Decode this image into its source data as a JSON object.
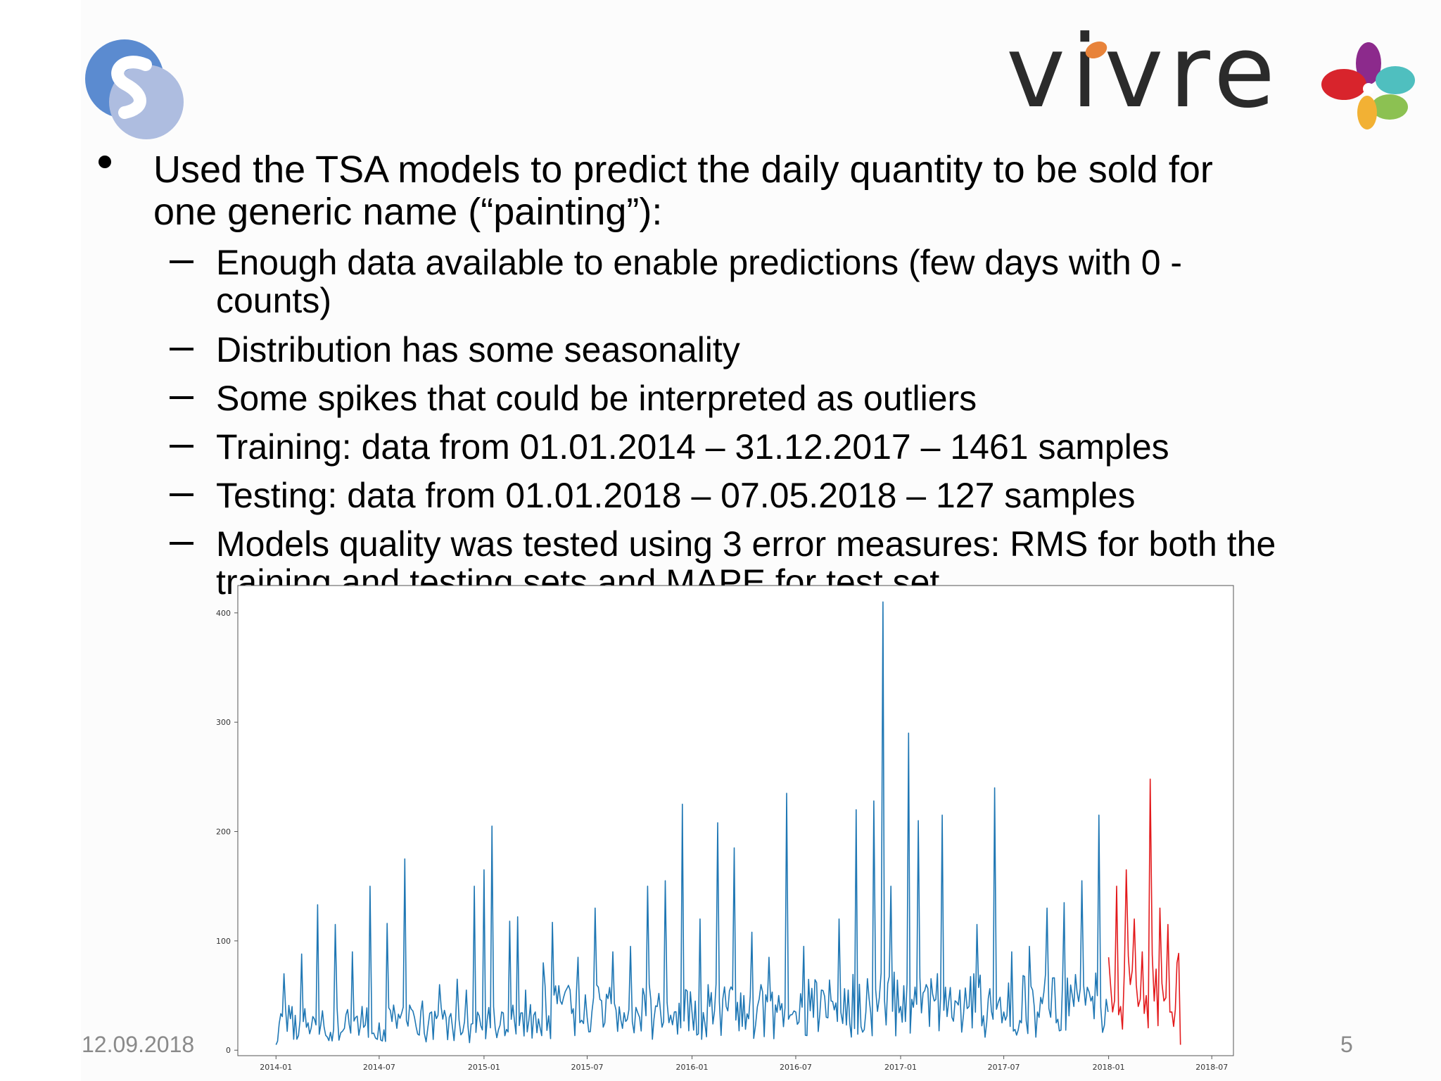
{
  "slide": {
    "bullet": {
      "line1": "Used the TSA models to predict the daily quantity to be sold for",
      "line2": "one generic name (“painting”):"
    },
    "sub_items": [
      {
        "line1": "Enough data available to enable predictions (few days with 0 -",
        "line2": "counts)"
      },
      {
        "line1": "Distribution has some seasonality"
      },
      {
        "line1": "Some spikes that could be interpreted as outliers"
      },
      {
        "line1": "Training: data from 01.01.2014 – 31.12.2017 – 1461 samples"
      },
      {
        "line1": "Testing: data from 01.01.2018 – 07.05.2018 – 127 samples"
      },
      {
        "line1": "Models quality was tested using 3 error measures: RMS for both the",
        "line2": "training and testing sets and MAPE for test set"
      }
    ],
    "footer": {
      "date": "12.09.2018",
      "page": "5"
    },
    "logo_text": "vivre"
  },
  "colors": {
    "train_series": "#1f77b4",
    "test_series": "#e31a1c",
    "left_logo_dark": "#5b8bd0",
    "left_logo_light": "#aebde0",
    "vivre_text": "#2b2b2b",
    "vivre_dot": "#e8833a"
  },
  "icons": [
    "left-logo-icon",
    "vivre-flower-icon"
  ],
  "chart_data": {
    "type": "line",
    "x_tick_labels": [
      "2014-01",
      "2014-07",
      "2015-01",
      "2015-07",
      "2016-01",
      "2016-07",
      "2017-01",
      "2017-07",
      "2018-01",
      "2018-07"
    ],
    "y_tick_labels": [
      "0",
      "100",
      "200",
      "300",
      "400"
    ],
    "xlim": [
      "2013-10-26",
      "2018-08-08"
    ],
    "ylim": [
      -5,
      425
    ],
    "grid": false,
    "legend": "none",
    "series": [
      {
        "role": "training",
        "color": "#1f77b4",
        "x": [
          "2014-01-01",
          "2014-01-15",
          "2014-02-01",
          "2014-02-15",
          "2014-03-01",
          "2014-03-15",
          "2014-04-01",
          "2014-04-15",
          "2014-05-01",
          "2014-05-15",
          "2014-06-01",
          "2014-06-15",
          "2014-07-01",
          "2014-07-15",
          "2014-08-01",
          "2014-08-15",
          "2014-09-01",
          "2014-09-15",
          "2014-10-01",
          "2014-10-15",
          "2014-11-01",
          "2014-11-15",
          "2014-12-01",
          "2014-12-15",
          "2015-01-01",
          "2015-01-15",
          "2015-02-01",
          "2015-02-15",
          "2015-03-01",
          "2015-03-15",
          "2015-04-01",
          "2015-04-15",
          "2015-05-01",
          "2015-05-15",
          "2015-06-01",
          "2015-06-15",
          "2015-07-01",
          "2015-07-15",
          "2015-08-01",
          "2015-08-15",
          "2015-09-01",
          "2015-09-15",
          "2015-10-01",
          "2015-10-15",
          "2015-11-01",
          "2015-11-15",
          "2015-12-01",
          "2015-12-15",
          "2016-01-01",
          "2016-01-15",
          "2016-02-01",
          "2016-02-15",
          "2016-03-01",
          "2016-03-15",
          "2016-04-01",
          "2016-04-15",
          "2016-05-01",
          "2016-05-15",
          "2016-06-01",
          "2016-06-15",
          "2016-07-01",
          "2016-07-15",
          "2016-08-01",
          "2016-08-15",
          "2016-09-01",
          "2016-09-15",
          "2016-10-01",
          "2016-10-15",
          "2016-11-01",
          "2016-11-15",
          "2016-12-01",
          "2016-12-15",
          "2017-01-01",
          "2017-01-15",
          "2017-02-01",
          "2017-02-15",
          "2017-03-01",
          "2017-03-15",
          "2017-04-01",
          "2017-04-15",
          "2017-05-01",
          "2017-05-15",
          "2017-06-01",
          "2017-06-15",
          "2017-07-01",
          "2017-07-15",
          "2017-08-01",
          "2017-08-15",
          "2017-09-01",
          "2017-09-15",
          "2017-10-01",
          "2017-10-15",
          "2017-11-01",
          "2017-11-15",
          "2017-12-01",
          "2017-12-15",
          "2017-12-31"
        ],
        "y": [
          5,
          70,
          10,
          88,
          15,
          133,
          12,
          115,
          20,
          90,
          40,
          150,
          25,
          116,
          20,
          175,
          30,
          45,
          35,
          60,
          30,
          65,
          55,
          150,
          165,
          205,
          35,
          118,
          122,
          55,
          35,
          80,
          117,
          45,
          55,
          85,
          30,
          130,
          25,
          90,
          20,
          95,
          30,
          150,
          40,
          155,
          35,
          225,
          35,
          120,
          40,
          208,
          40,
          185,
          50,
          108,
          60,
          85,
          50,
          235,
          35,
          95,
          30,
          55,
          45,
          120,
          55,
          220,
          35,
          228,
          410,
          150,
          40,
          290,
          210,
          60,
          45,
          215,
          30,
          55,
          40,
          115,
          25,
          240,
          35,
          90,
          25,
          95,
          30,
          130,
          25,
          135,
          40,
          155,
          45,
          215,
          35
        ]
      },
      {
        "role": "testing",
        "color": "#e31a1c",
        "x": [
          "2018-01-01",
          "2018-01-08",
          "2018-01-15",
          "2018-01-22",
          "2018-02-01",
          "2018-02-08",
          "2018-02-15",
          "2018-02-22",
          "2018-03-01",
          "2018-03-08",
          "2018-03-15",
          "2018-03-22",
          "2018-04-01",
          "2018-04-08",
          "2018-04-15",
          "2018-04-22",
          "2018-05-01",
          "2018-05-07"
        ],
        "y": [
          85,
          35,
          150,
          40,
          165,
          60,
          120,
          40,
          90,
          50,
          248,
          45,
          130,
          45,
          115,
          35,
          80,
          5
        ]
      }
    ]
  }
}
